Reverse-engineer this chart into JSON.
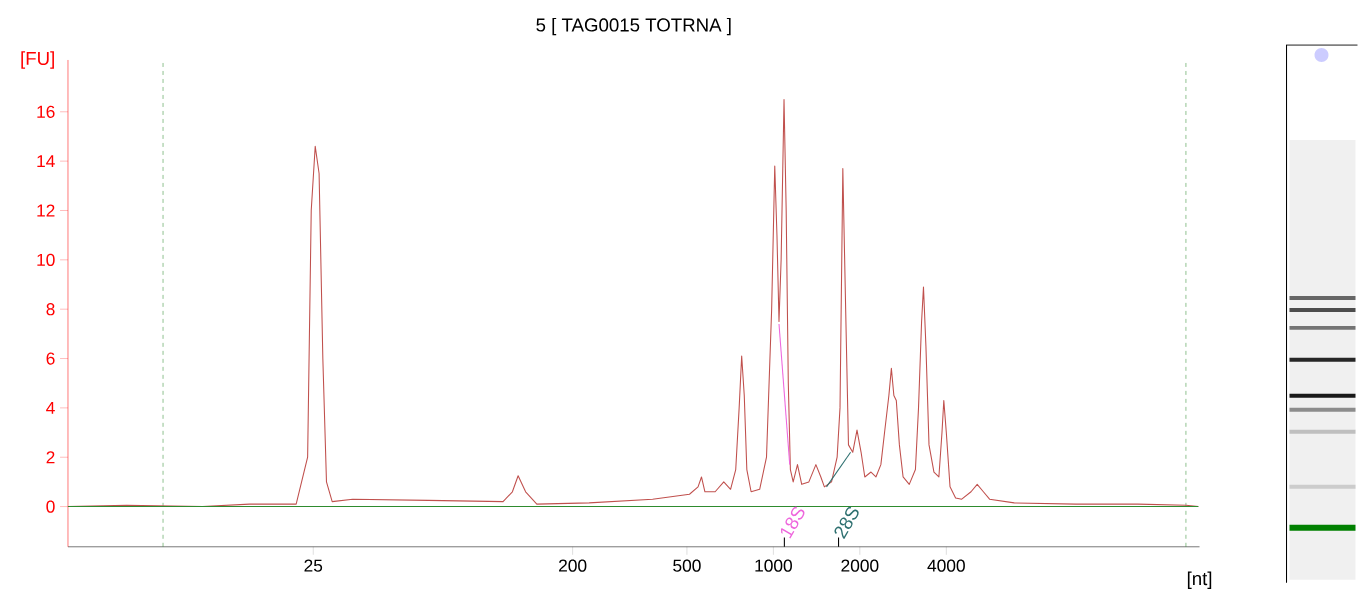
{
  "chart_data": {
    "type": "line",
    "title": "5  [ TAG0015 TOTRNA ]",
    "xlabel": "[nt]",
    "ylabel": "[FU]",
    "x": [
      3.5,
      5.6,
      10.3,
      15.0,
      21.8,
      23.9,
      24.6,
      25.4,
      26.2,
      27.0,
      27.8,
      29.1,
      34.3,
      62.7,
      114.5,
      123.4,
      129.2,
      137.2,
      150.1,
      228.3,
      379.8,
      510.4,
      546.6,
      561.9,
      577.6,
      627,
      671.7,
      709.5,
      739.5,
      760,
      775.6,
      791.8,
      808.2,
      836.4,
      895.9,
      946.3,
      986.2,
      1011,
      1029,
      1046,
      1064,
      1089,
      1108,
      1127,
      1146,
      1172,
      1213,
      1255,
      1329,
      1406,
      1463,
      1505,
      1594,
      1667,
      1706,
      1745,
      1785,
      1826,
      1889,
      1955,
      2020,
      2081,
      2187,
      2275,
      2367,
      2438,
      2524,
      2575,
      2627,
      2679,
      2746,
      2829,
      2972,
      3123,
      3201,
      3281,
      3331,
      3397,
      3482,
      3623,
      3769,
      3864,
      3921,
      4000,
      4121,
      4309,
      4527,
      4876,
      5124,
      5384,
      5658,
      6895,
      11314,
      18560,
      27310,
      30160
    ],
    "series": [
      {
        "color": "#c0504d",
        "values": [
          0,
          0.05,
          0,
          0.1,
          0.1,
          2,
          12,
          14.6,
          13.5,
          6,
          1,
          0.2,
          0.3,
          0.25,
          0.2,
          0.6,
          1.25,
          0.6,
          0.1,
          0.15,
          0.3,
          0.5,
          0.8,
          1.2,
          0.6,
          0.6,
          1.0,
          0.7,
          1.5,
          4,
          6.1,
          4.5,
          1.5,
          0.6,
          0.7,
          2,
          8,
          13.8,
          11,
          7.5,
          10,
          16.5,
          12,
          5,
          1.5,
          1.0,
          1.7,
          0.9,
          1.0,
          1.7,
          1.2,
          0.8,
          1.0,
          2.0,
          4,
          13.7,
          8,
          2.5,
          2.2,
          3.1,
          2.2,
          1.2,
          1.4,
          1.2,
          1.7,
          3.0,
          4.5,
          5.6,
          4.5,
          4.3,
          2.5,
          1.2,
          0.9,
          1.5,
          4,
          7.5,
          8.9,
          6.5,
          2.5,
          1.4,
          1.2,
          3,
          4.3,
          3,
          0.8,
          0.35,
          0.3,
          0.6,
          0.9,
          0.6,
          0.3,
          0.15,
          0.1,
          0.1,
          0.05,
          0.0
        ]
      },
      {
        "color": "#2e8b2e",
        "x": [
          3.5,
          30160
        ],
        "values": [
          0,
          0
        ]
      },
      {
        "name": "18S",
        "color": "#ee66dd",
        "x": [
          1046,
          1140
        ],
        "values": [
          7.4,
          1.7
        ]
      },
      {
        "name": "28S",
        "color": "#2e7070",
        "x": [
          1531,
          1857
        ],
        "values": [
          0.8,
          2.2
        ]
      }
    ],
    "xlim": [
      3.5,
      30460
    ],
    "ylim": [
      -1.63,
      18.1
    ],
    "log": "x",
    "xticks": [
      25,
      200,
      500,
      1000,
      2000,
      4000
    ],
    "yticks": [
      0,
      2,
      4,
      6,
      8,
      10,
      12,
      14,
      16
    ],
    "ref_lines": [
      {
        "axis": "x",
        "value": 7.5,
        "color": "#2e8b2e",
        "line_style": "dashed"
      },
      {
        "axis": "x",
        "value": 27310,
        "color": "#2e8b2e",
        "line_style": "dashed"
      }
    ]
  }
}
